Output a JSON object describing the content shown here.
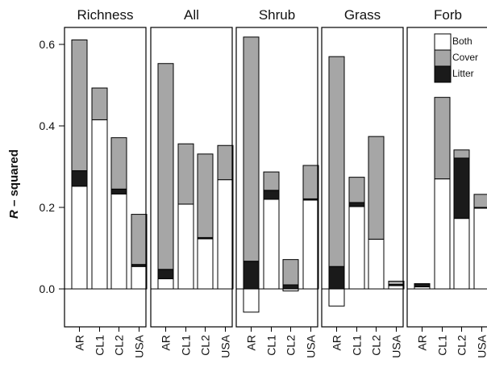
{
  "chart_data": {
    "type": "bar",
    "stacked": true,
    "ylabel_italic": "R",
    "ylabel_rest": " – squared",
    "ylim": [
      -0.1,
      0.66
    ],
    "yticks": [
      0.0,
      0.2,
      0.4,
      0.6
    ],
    "ytick_labels": [
      "0.0",
      "0.2",
      "0.4",
      "0.6"
    ],
    "categories": [
      "AR",
      "CL1",
      "CL2",
      "USA"
    ],
    "stack_order": [
      "Both",
      "Litter",
      "Cover"
    ],
    "legend": [
      {
        "label": "Both",
        "color": "#ffffff"
      },
      {
        "label": "Cover",
        "color": "#a6a6a6"
      },
      {
        "label": "Litter",
        "color": "#1a1a1a"
      }
    ],
    "legend_placement": "top-right of Forb panel",
    "panels": [
      {
        "title": "Richness",
        "series": [
          {
            "name": "Both",
            "values": [
              0.252,
              0.415,
              0.233,
              0.055
            ]
          },
          {
            "name": "Litter",
            "values": [
              0.038,
              0.0,
              0.012,
              0.005
            ]
          },
          {
            "name": "Cover",
            "values": [
              0.321,
              0.078,
              0.126,
              0.123
            ]
          }
        ]
      },
      {
        "title": "All",
        "series": [
          {
            "name": "Both",
            "values": [
              0.025,
              0.208,
              0.123,
              0.268
            ]
          },
          {
            "name": "Litter",
            "values": [
              0.023,
              0.0,
              0.003,
              0.0
            ]
          },
          {
            "name": "Cover",
            "values": [
              0.505,
              0.148,
              0.205,
              0.084
            ]
          }
        ]
      },
      {
        "title": "Shrub",
        "series": [
          {
            "name": "Both",
            "values": [
              -0.057,
              0.22,
              -0.005,
              0.218
            ]
          },
          {
            "name": "Litter",
            "values": [
              0.068,
              0.022,
              0.01,
              0.003
            ]
          },
          {
            "name": "Cover",
            "values": [
              0.55,
              0.045,
              0.062,
              0.082
            ]
          }
        ]
      },
      {
        "title": "Grass",
        "series": [
          {
            "name": "Both",
            "values": [
              -0.042,
              0.202,
              0.122,
              0.008
            ]
          },
          {
            "name": "Litter",
            "values": [
              0.055,
              0.01,
              0.0,
              0.003
            ]
          },
          {
            "name": "Cover",
            "values": [
              0.515,
              0.062,
              0.252,
              0.008
            ]
          }
        ]
      },
      {
        "title": "Forb",
        "series": [
          {
            "name": "Both",
            "values": [
              0.005,
              0.27,
              0.173,
              0.198
            ]
          },
          {
            "name": "Litter",
            "values": [
              0.008,
              0.0,
              0.148,
              0.002
            ]
          },
          {
            "name": "Cover",
            "values": [
              0.0,
              0.2,
              0.02,
              0.032
            ]
          }
        ]
      }
    ],
    "colors": {
      "Both": "#ffffff",
      "Cover": "#a6a6a6",
      "Litter": "#1a1a1a",
      "stroke": "#000000"
    },
    "grid": false
  }
}
